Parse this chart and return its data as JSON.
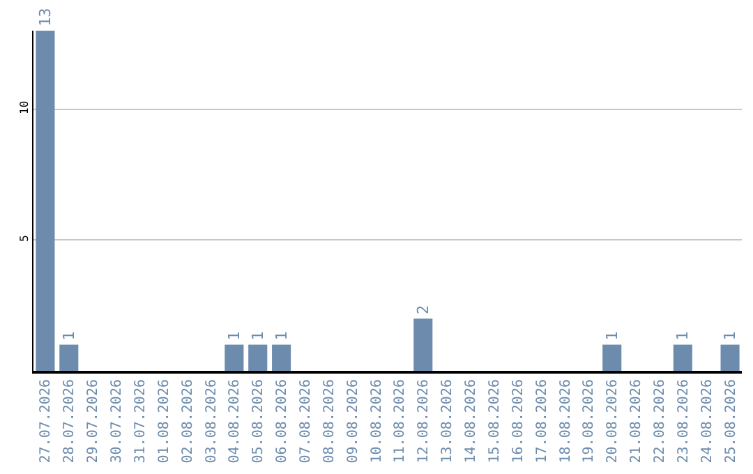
{
  "chart_data": {
    "type": "bar",
    "categories": [
      "27.07.2026",
      "28.07.2026",
      "29.07.2026",
      "30.07.2026",
      "31.07.2026",
      "01.08.2026",
      "02.08.2026",
      "03.08.2026",
      "04.08.2026",
      "05.08.2026",
      "06.08.2026",
      "07.08.2026",
      "08.08.2026",
      "09.08.2026",
      "10.08.2026",
      "11.08.2026",
      "12.08.2026",
      "13.08.2026",
      "14.08.2026",
      "15.08.2026",
      "16.08.2026",
      "17.08.2026",
      "18.08.2026",
      "19.08.2026",
      "20.08.2026",
      "21.08.2026",
      "22.08.2026",
      "23.08.2026",
      "24.08.2026",
      "25.08.2026"
    ],
    "values": [
      13,
      1,
      0,
      0,
      0,
      0,
      0,
      0,
      1,
      1,
      1,
      0,
      0,
      0,
      0,
      0,
      2,
      0,
      0,
      0,
      0,
      0,
      0,
      0,
      1,
      0,
      0,
      1,
      0,
      1
    ],
    "value_labels": [
      "13",
      "1",
      null,
      null,
      null,
      null,
      null,
      null,
      "1",
      "1",
      "1",
      null,
      null,
      null,
      null,
      null,
      "2",
      null,
      null,
      null,
      null,
      null,
      null,
      null,
      "1",
      null,
      null,
      "1",
      null,
      "1"
    ],
    "color": "#6d8cad",
    "ylim": [
      0,
      13
    ],
    "yticks": [
      5,
      10
    ],
    "grid": "y",
    "legend": false
  }
}
